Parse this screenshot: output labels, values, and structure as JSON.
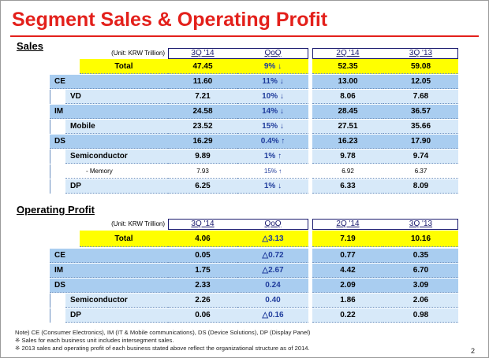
{
  "title": "Segment Sales & Operating Profit",
  "sales": {
    "label": "Sales",
    "unit": "(Unit: KRW Trillion)",
    "columns": [
      "3Q '14",
      "QoQ",
      "2Q '14",
      "3Q '13"
    ],
    "rows": [
      {
        "label": "Total",
        "cells": [
          "47.45",
          "9% ↓",
          "52.35",
          "59.08"
        ]
      },
      {
        "label": "CE",
        "cells": [
          "11.60",
          "11% ↓",
          "13.00",
          "12.05"
        ]
      },
      {
        "label": "VD",
        "cells": [
          "7.21",
          "10% ↓",
          "8.06",
          "7.68"
        ]
      },
      {
        "label": "IM",
        "cells": [
          "24.58",
          "14% ↓",
          "28.45",
          "36.57"
        ]
      },
      {
        "label": "Mobile",
        "cells": [
          "23.52",
          "15% ↓",
          "27.51",
          "35.66"
        ]
      },
      {
        "label": "DS",
        "cells": [
          "16.29",
          "0.4% ↑",
          "16.23",
          "17.90"
        ]
      },
      {
        "label": "Semiconductor",
        "cells": [
          "9.89",
          "1% ↑",
          "9.78",
          "9.74"
        ]
      },
      {
        "label": "- Memory",
        "cells": [
          "7.93",
          "15% ↑",
          "6.92",
          "6.37"
        ]
      },
      {
        "label": "DP",
        "cells": [
          "6.25",
          "1% ↓",
          "6.33",
          "8.09"
        ]
      }
    ]
  },
  "operating_profit": {
    "label": "Operating Profit",
    "unit": "(Unit: KRW Trillion)",
    "columns": [
      "3Q '14",
      "QoQ",
      "2Q '14",
      "3Q '13"
    ],
    "rows": [
      {
        "label": "Total",
        "cells": [
          "4.06",
          "△3.13",
          "7.19",
          "10.16"
        ]
      },
      {
        "label": "CE",
        "cells": [
          "0.05",
          "△0.72",
          "0.77",
          "0.35"
        ]
      },
      {
        "label": "IM",
        "cells": [
          "1.75",
          "△2.67",
          "4.42",
          "6.70"
        ]
      },
      {
        "label": "DS",
        "cells": [
          "2.33",
          "0.24",
          "2.09",
          "3.09"
        ]
      },
      {
        "label": "Semiconductor",
        "cells": [
          "2.26",
          "0.40",
          "1.86",
          "2.06"
        ]
      },
      {
        "label": "DP",
        "cells": [
          "0.06",
          "△0.16",
          "0.22",
          "0.98"
        ]
      }
    ]
  },
  "notes": [
    "Note) CE (Consumer Electronics), IM (IT & Mobile communications), DS (Device Solutions), DP (Display Panel)",
    "※ Sales for each business unit includes intersegment sales.",
    "※ 2013 sales and operating profit of each business stated above reflect the organizational structure as of 2014."
  ],
  "page_number": "2"
}
